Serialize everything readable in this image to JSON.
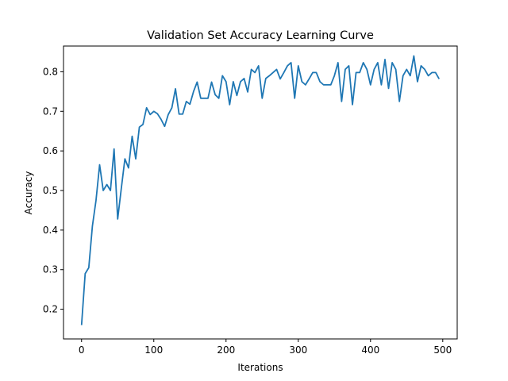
{
  "chart_data": {
    "type": "line",
    "title": "Validation Set Accuracy Learning Curve",
    "xlabel": "Iterations",
    "ylabel": "Accuracy",
    "xlim": [
      -25,
      520
    ],
    "ylim": [
      0.125,
      0.865
    ],
    "xticks": [
      0,
      100,
      200,
      300,
      400,
      500
    ],
    "yticks": [
      0.2,
      0.3,
      0.4,
      0.5,
      0.6,
      0.7,
      0.8
    ],
    "grid": false,
    "line_color": "#1f77b4",
    "series": [
      {
        "x": [
          0,
          5,
          10,
          15,
          20,
          25,
          30,
          35,
          40,
          45,
          50,
          55,
          60,
          65,
          70,
          75,
          80,
          85,
          90,
          95,
          100,
          105,
          110,
          115,
          120,
          125,
          130,
          135,
          140,
          145,
          150,
          155,
          160,
          165,
          170,
          175,
          180,
          185,
          190,
          195,
          200,
          205,
          210,
          215,
          220,
          225,
          230,
          235,
          240,
          245,
          250,
          255,
          260,
          265,
          270,
          275,
          280,
          285,
          290,
          295,
          300,
          305,
          310,
          315,
          320,
          325,
          330,
          335,
          340,
          345,
          350,
          355,
          360,
          365,
          370,
          375,
          380,
          385,
          390,
          395,
          400,
          405,
          410,
          415,
          420,
          425,
          430,
          435,
          440,
          445,
          450,
          455,
          460,
          465,
          470,
          475,
          480,
          485,
          490,
          495
        ],
        "y": [
          0.16,
          0.29,
          0.305,
          0.41,
          0.475,
          0.565,
          0.5,
          0.515,
          0.5,
          0.605,
          0.428,
          0.505,
          0.58,
          0.557,
          0.637,
          0.58,
          0.66,
          0.667,
          0.709,
          0.692,
          0.7,
          0.694,
          0.68,
          0.662,
          0.692,
          0.709,
          0.757,
          0.693,
          0.693,
          0.725,
          0.718,
          0.75,
          0.774,
          0.733,
          0.733,
          0.733,
          0.774,
          0.742,
          0.733,
          0.79,
          0.775,
          0.717,
          0.775,
          0.74,
          0.775,
          0.783,
          0.749,
          0.806,
          0.798,
          0.815,
          0.733,
          0.783,
          0.79,
          0.798,
          0.806,
          0.782,
          0.798,
          0.815,
          0.823,
          0.733,
          0.815,
          0.775,
          0.767,
          0.782,
          0.798,
          0.798,
          0.775,
          0.767,
          0.767,
          0.767,
          0.79,
          0.823,
          0.725,
          0.806,
          0.815,
          0.717,
          0.798,
          0.798,
          0.823,
          0.806,
          0.767,
          0.806,
          0.823,
          0.767,
          0.831,
          0.758,
          0.823,
          0.806,
          0.725,
          0.79,
          0.806,
          0.79,
          0.84,
          0.775,
          0.815,
          0.806,
          0.79,
          0.798,
          0.798,
          0.782
        ]
      }
    ]
  }
}
